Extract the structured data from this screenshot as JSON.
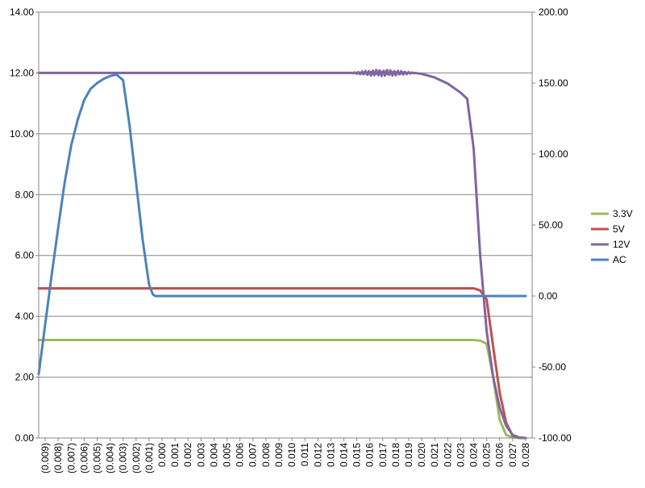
{
  "chart_data": {
    "type": "line",
    "title": "",
    "xlabel": "",
    "ylabel": "",
    "y2label": "",
    "x_tick_labels": [
      "(0.009)",
      "(0.008)",
      "(0.007)",
      "(0.006)",
      "(0.005)",
      "(0.004)",
      "(0.003)",
      "(0.002)",
      "(0.001)",
      "0.000",
      "0.001",
      "0.002",
      "0.003",
      "0.004",
      "0.005",
      "0.006",
      "0.007",
      "0.008",
      "0.009",
      "0.010",
      "0.011",
      "0.012",
      "0.013",
      "0.014",
      "0.015",
      "0.016",
      "0.017",
      "0.018",
      "0.019",
      "0.020",
      "0.021",
      "0.022",
      "0.023",
      "0.024",
      "0.025",
      "0.026",
      "0.027",
      "0.028"
    ],
    "xlim": [
      -0.0095,
      0.0285
    ],
    "ylim": [
      0,
      14
    ],
    "y2lim": [
      -100,
      200
    ],
    "y_tick_labels": [
      "0.00",
      "2.00",
      "4.00",
      "6.00",
      "8.00",
      "10.00",
      "12.00",
      "14.00"
    ],
    "y2_tick_labels": [
      "-100.00",
      "-50.00",
      "0.00",
      "50.00",
      "100.00",
      "150.00",
      "200.00"
    ],
    "grid": true,
    "legend_position": "right",
    "series": [
      {
        "name": "3.3V",
        "color": "#9bbb59",
        "axis": "left",
        "x": [
          -0.0095,
          0.024,
          0.0245,
          0.025,
          0.0255,
          0.026,
          0.0265,
          0.027,
          0.0275,
          0.028
        ],
        "y": [
          3.22,
          3.22,
          3.2,
          3.1,
          2.0,
          0.6,
          0.1,
          0.02,
          0.0,
          0.0
        ]
      },
      {
        "name": "5V",
        "color": "#c0504d",
        "axis": "left",
        "x": [
          -0.0095,
          0.024,
          0.0245,
          0.025,
          0.0255,
          0.026,
          0.0265,
          0.027,
          0.0275,
          0.028
        ],
        "y": [
          4.92,
          4.92,
          4.85,
          4.55,
          3.0,
          1.5,
          0.5,
          0.08,
          0.0,
          0.0
        ]
      },
      {
        "name": "12V",
        "color": "#8064a2",
        "axis": "left",
        "x": [
          -0.0095,
          0.0145,
          0.015,
          0.0155,
          0.016,
          0.0165,
          0.017,
          0.0175,
          0.018,
          0.0185,
          0.019,
          0.0195,
          0.02,
          0.021,
          0.022,
          0.023,
          0.0235,
          0.024,
          0.0245,
          0.025,
          0.0255,
          0.026,
          0.0265,
          0.027,
          0.0275,
          0.028
        ],
        "y": [
          12.0,
          12.0,
          11.92,
          12.08,
          11.88,
          12.1,
          11.88,
          12.08,
          11.9,
          12.05,
          11.92,
          12.0,
          11.97,
          11.85,
          11.65,
          11.35,
          11.15,
          9.5,
          6.0,
          3.5,
          2.0,
          1.0,
          0.4,
          0.1,
          0.02,
          0.0
        ],
        "oscillation_range": [
          0.0145,
          0.0195
        ]
      },
      {
        "name": "AC",
        "color": "#4f81bd",
        "axis": "right",
        "x": [
          -0.0095,
          -0.009,
          -0.0085,
          -0.008,
          -0.0075,
          -0.007,
          -0.0065,
          -0.006,
          -0.0055,
          -0.005,
          -0.0045,
          -0.004,
          -0.0035,
          -0.003,
          -0.0025,
          -0.002,
          -0.0015,
          -0.001,
          -0.0007,
          -0.0005,
          0.0,
          0.01,
          0.02,
          0.028
        ],
        "y": [
          -55,
          -20,
          15,
          48,
          80,
          106,
          124,
          138,
          146,
          150,
          153,
          155,
          156,
          152,
          120,
          80,
          40,
          8,
          1,
          0,
          0,
          0,
          0,
          0
        ]
      }
    ]
  }
}
